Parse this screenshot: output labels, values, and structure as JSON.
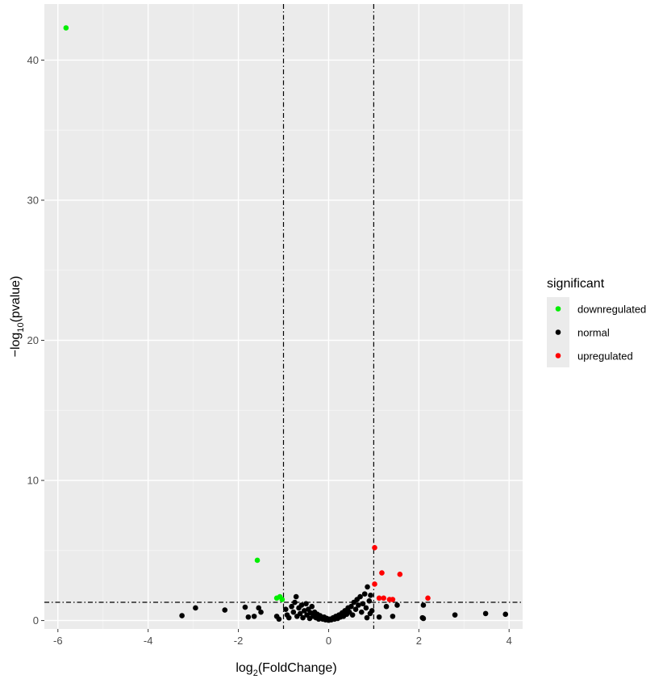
{
  "chart_data": {
    "type": "scatter",
    "title": "",
    "xlabel_base": "log",
    "xlabel_sub": "2",
    "xlabel_rest": "(FoldChange)",
    "ylabel_pre": "−log",
    "ylabel_sub": "10",
    "ylabel_rest": "(pvalue)",
    "xlim": [
      -6.3,
      4.3
    ],
    "ylim": [
      -0.6,
      44.0
    ],
    "xticks": [
      -6,
      -4,
      -2,
      0,
      2,
      4
    ],
    "yticks": [
      0,
      10,
      20,
      30,
      40
    ],
    "xtick_labels": [
      "-6",
      "-4",
      "-2",
      "0",
      "2",
      "4"
    ],
    "ytick_labels": [
      "0",
      "10",
      "20",
      "30",
      "40"
    ],
    "vlines": [
      -1,
      1
    ],
    "hline": 1.3,
    "grid": true,
    "legend_position": "right",
    "legend_title": "significant",
    "series": [
      {
        "name": "downregulated",
        "color": "#00ee00",
        "points": [
          [
            -5.82,
            42.3
          ],
          [
            -1.58,
            4.3
          ],
          [
            -1.15,
            1.6
          ],
          [
            -1.08,
            1.7
          ],
          [
            -1.03,
            1.5
          ]
        ]
      },
      {
        "name": "normal",
        "color": "#000000",
        "points": [
          [
            -3.25,
            0.35
          ],
          [
            -2.95,
            0.9
          ],
          [
            -2.3,
            0.75
          ],
          [
            -1.85,
            0.95
          ],
          [
            -1.78,
            0.25
          ],
          [
            -1.65,
            0.3
          ],
          [
            -1.55,
            0.9
          ],
          [
            -1.5,
            0.6
          ],
          [
            -1.15,
            0.3
          ],
          [
            -1.1,
            0.1
          ],
          [
            -0.95,
            0.8
          ],
          [
            -0.92,
            0.4
          ],
          [
            -0.88,
            0.2
          ],
          [
            -0.82,
            1.0
          ],
          [
            -0.78,
            0.6
          ],
          [
            -0.75,
            1.3
          ],
          [
            -0.72,
            1.7
          ],
          [
            -0.7,
            0.3
          ],
          [
            -0.66,
            0.9
          ],
          [
            -0.63,
            0.5
          ],
          [
            -0.6,
            1.1
          ],
          [
            -0.57,
            0.2
          ],
          [
            -0.54,
            0.7
          ],
          [
            -0.5,
            1.2
          ],
          [
            -0.48,
            0.4
          ],
          [
            -0.45,
            0.8
          ],
          [
            -0.42,
            0.15
          ],
          [
            -0.4,
            0.55
          ],
          [
            -0.37,
            1.0
          ],
          [
            -0.34,
            0.3
          ],
          [
            -0.31,
            0.6
          ],
          [
            -0.28,
            0.2
          ],
          [
            -0.25,
            0.45
          ],
          [
            -0.22,
            0.1
          ],
          [
            -0.19,
            0.35
          ],
          [
            -0.16,
            0.2
          ],
          [
            -0.13,
            0.1
          ],
          [
            -0.1,
            0.25
          ],
          [
            -0.07,
            0.05
          ],
          [
            -0.04,
            0.15
          ],
          [
            0.0,
            0.02
          ],
          [
            0.03,
            0.1
          ],
          [
            0.06,
            0.05
          ],
          [
            0.1,
            0.2
          ],
          [
            0.13,
            0.1
          ],
          [
            0.16,
            0.3
          ],
          [
            0.2,
            0.15
          ],
          [
            0.23,
            0.4
          ],
          [
            0.26,
            0.25
          ],
          [
            0.3,
            0.55
          ],
          [
            0.33,
            0.3
          ],
          [
            0.36,
            0.7
          ],
          [
            0.4,
            0.45
          ],
          [
            0.43,
            0.9
          ],
          [
            0.46,
            0.6
          ],
          [
            0.5,
            1.0
          ],
          [
            0.53,
            0.4
          ],
          [
            0.56,
            1.3
          ],
          [
            0.6,
            0.8
          ],
          [
            0.63,
            1.5
          ],
          [
            0.66,
            1.1
          ],
          [
            0.7,
            1.7
          ],
          [
            0.73,
            0.6
          ],
          [
            0.76,
            1.2
          ],
          [
            0.8,
            1.9
          ],
          [
            0.83,
            0.9
          ],
          [
            0.86,
            2.4
          ],
          [
            0.9,
            1.4
          ],
          [
            0.93,
            1.8
          ],
          [
            0.96,
            0.7
          ],
          [
            0.85,
            0.2
          ],
          [
            0.92,
            0.5
          ],
          [
            1.12,
            0.25
          ],
          [
            1.28,
            1.0
          ],
          [
            1.42,
            0.3
          ],
          [
            1.52,
            1.1
          ],
          [
            2.08,
            0.2
          ],
          [
            2.1,
            0.15
          ],
          [
            2.1,
            1.1
          ],
          [
            2.8,
            0.4
          ],
          [
            3.48,
            0.5
          ],
          [
            3.92,
            0.45
          ]
        ]
      },
      {
        "name": "upregulated",
        "color": "#ff0000",
        "points": [
          [
            1.02,
            5.2
          ],
          [
            1.02,
            2.6
          ],
          [
            1.12,
            1.6
          ],
          [
            1.18,
            3.4
          ],
          [
            1.22,
            1.6
          ],
          [
            1.35,
            1.5
          ],
          [
            1.42,
            1.5
          ],
          [
            1.58,
            3.3
          ],
          [
            2.2,
            1.6
          ]
        ]
      }
    ]
  }
}
